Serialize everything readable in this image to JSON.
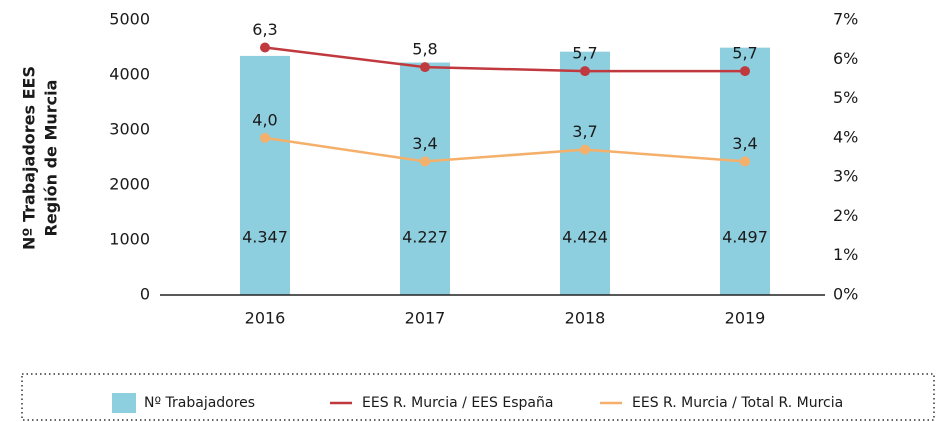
{
  "chart_data": {
    "type": "bar_line",
    "ylabel": [
      "Nº Trabajadores EES",
      "Región de Murcia"
    ],
    "categories": [
      "2016",
      "2017",
      "2018",
      "2019"
    ],
    "series": [
      {
        "name": "Nº Trabajadores",
        "type": "bar",
        "color": "#8ecfdf",
        "values": [
          4347,
          4227,
          4424,
          4497
        ],
        "value_labels": [
          "4.347",
          "4.227",
          "4.424",
          "4.497"
        ]
      },
      {
        "name": "EES R. Murcia / EES España",
        "type": "line",
        "axis": "y2",
        "color": "#c0393f",
        "values": [
          6.3,
          5.8,
          5.7,
          5.7
        ],
        "value_labels": [
          "6,3",
          "5,8",
          "5,7",
          "5,7"
        ]
      },
      {
        "name": "EES R. Murcia / Total R. Murcia",
        "type": "line",
        "axis": "y2",
        "color": "#f4b06a",
        "values": [
          4.0,
          3.4,
          3.7,
          3.4
        ],
        "value_labels": [
          "4,0",
          "3,4",
          "3,7",
          "3,4"
        ]
      }
    ],
    "ylim": [
      0,
      5000
    ],
    "yticks": [
      0,
      1000,
      2000,
      3000,
      4000,
      5000
    ],
    "y2lim": [
      0,
      7
    ],
    "y2ticks": [
      {
        "value": 0,
        "label": "0%"
      },
      {
        "value": 1,
        "label": "1%"
      },
      {
        "value": 2,
        "label": "2%"
      },
      {
        "value": 3,
        "label": "3%"
      },
      {
        "value": 4,
        "label": "4%"
      },
      {
        "value": 5,
        "label": "5%"
      },
      {
        "value": 6,
        "label": "6%"
      },
      {
        "value": 7,
        "label": "7%"
      }
    ],
    "legend": "bottom"
  }
}
